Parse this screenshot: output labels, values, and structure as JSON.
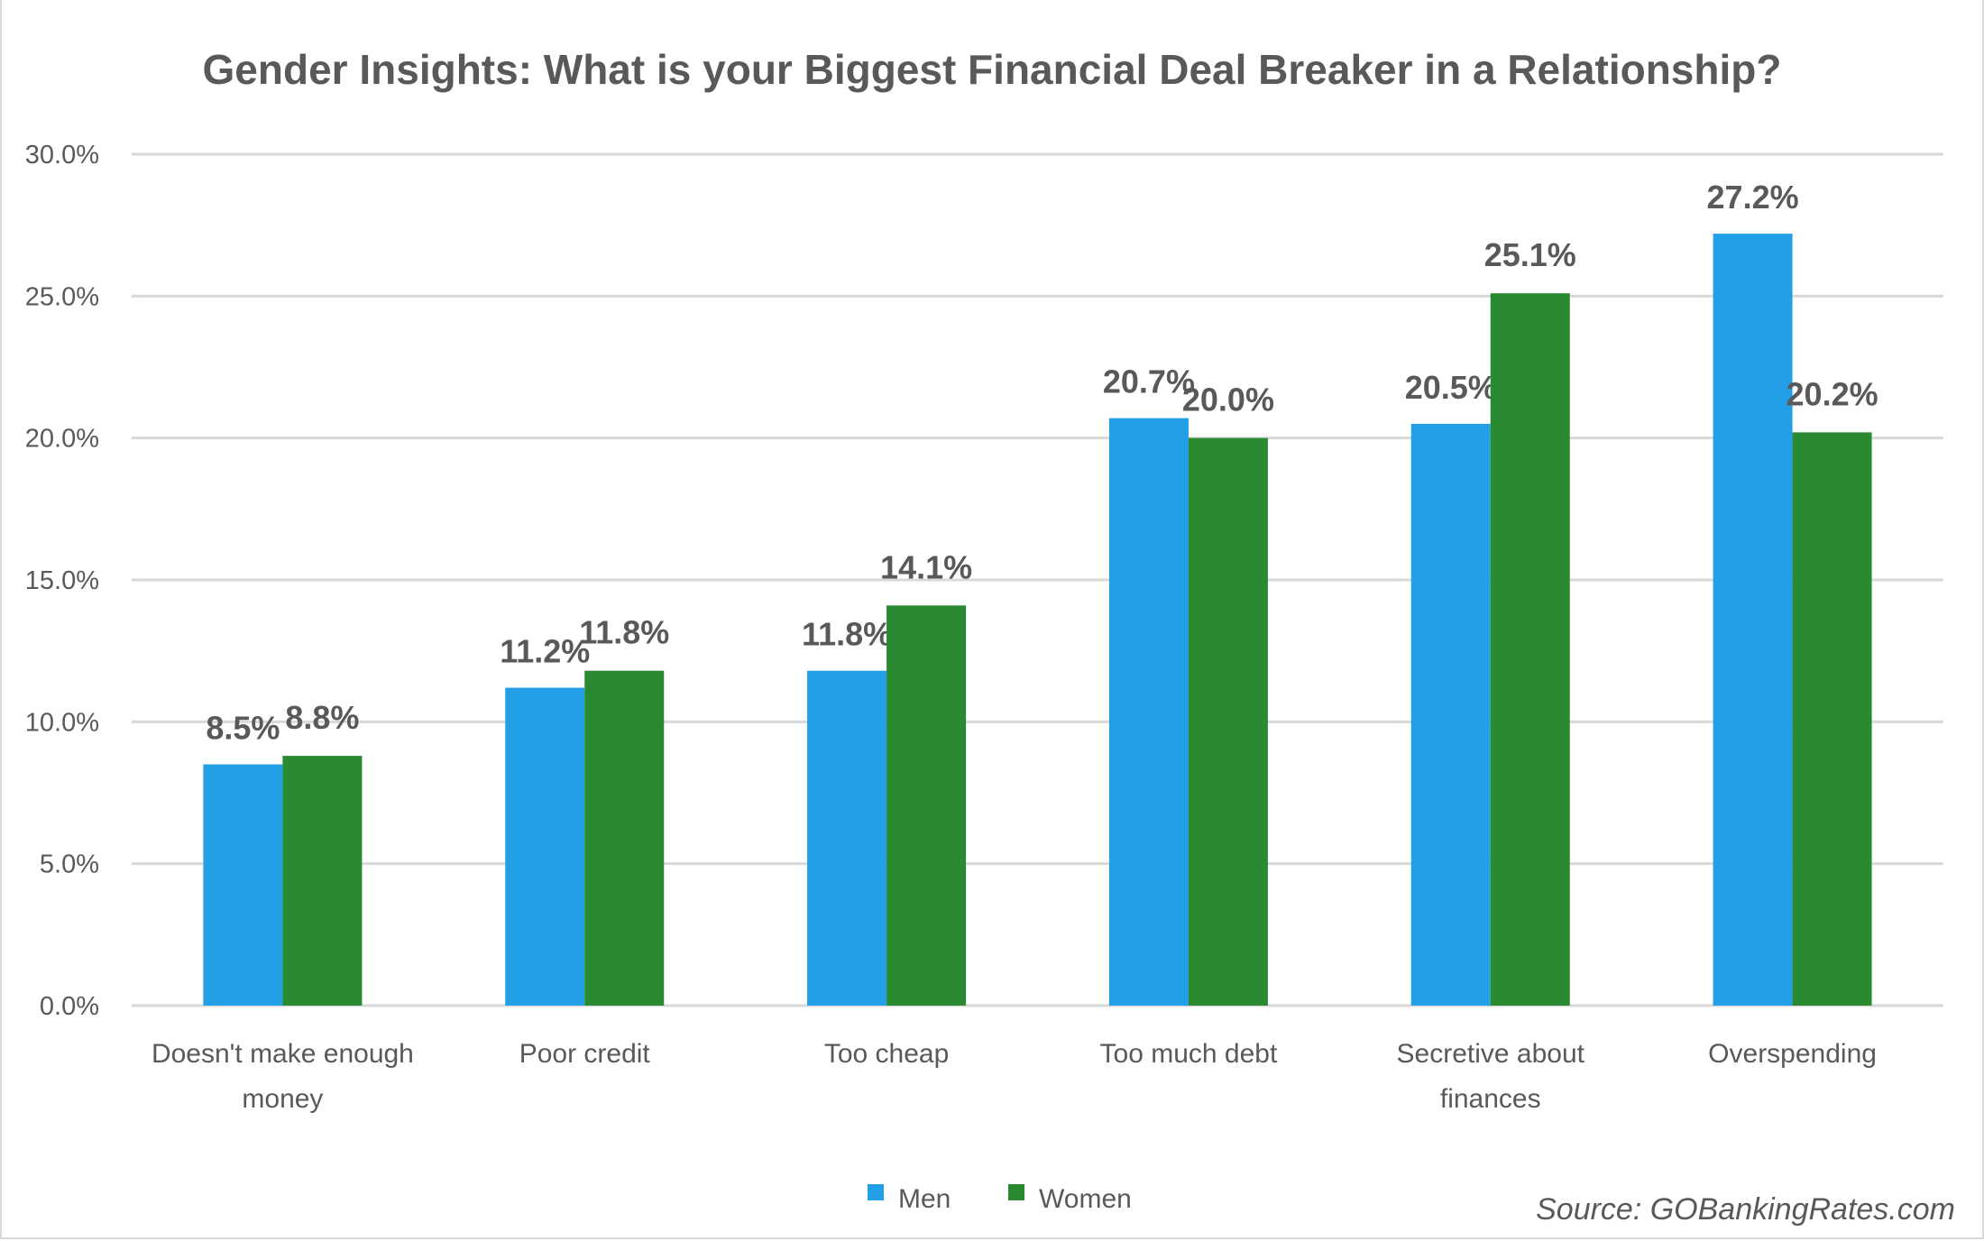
{
  "chart_data": {
    "type": "bar",
    "title": "Gender Insights: What is your Biggest Financial Deal Breaker in a Relationship?",
    "categories": [
      [
        "Doesn't make enough",
        "money"
      ],
      [
        "Poor credit"
      ],
      [
        "Too cheap"
      ],
      [
        "Too much debt"
      ],
      [
        "Secretive about",
        "finances"
      ],
      [
        "Overspending"
      ]
    ],
    "series": [
      {
        "name": "Men",
        "color": "#229fe6",
        "values": [
          8.5,
          11.2,
          11.8,
          20.7,
          20.5,
          27.2
        ],
        "labels": [
          "8.5%",
          "11.2%",
          "11.8%",
          "20.7%",
          "20.5%",
          "27.2%"
        ]
      },
      {
        "name": "Women",
        "color": "#2a8a31",
        "values": [
          8.8,
          11.8,
          14.1,
          20.0,
          25.1,
          20.2
        ],
        "labels": [
          "8.8%",
          "11.8%",
          "14.1%",
          "20.0%",
          "25.1%",
          "20.2%"
        ]
      }
    ],
    "yticks": [
      "0.0%",
      "5.0%",
      "10.0%",
      "15.0%",
      "20.0%",
      "25.0%",
      "30.0%"
    ],
    "ylim": [
      0,
      30
    ],
    "grid": true,
    "legend": "bottom",
    "source": "Source: GOBankingRates.com"
  }
}
